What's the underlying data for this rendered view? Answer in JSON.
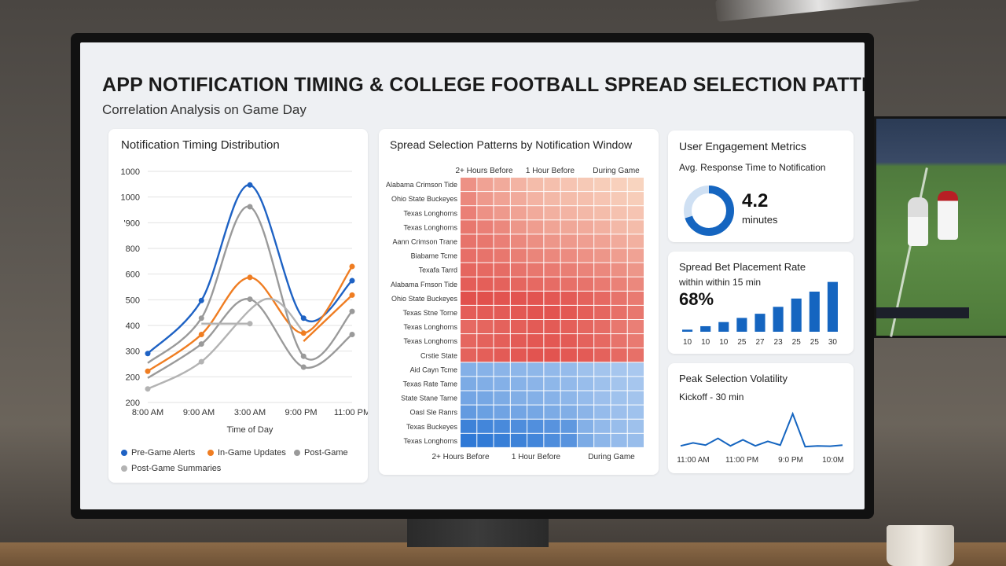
{
  "header": {
    "title": "APP NOTIFICATION TIMING & COLLEGE FOOTBALL SPREAD SELECTION PATTERNS",
    "subtitle": "Correlation Analysis on Game Day"
  },
  "cards": {
    "line": {
      "title": "Notification Timing Distribution",
      "x_label": "Time of Day"
    },
    "heatmap": {
      "title": "Spread Selection Patterns by Notification Window"
    },
    "engagement": {
      "title": "User Engagement Metrics",
      "subtitle": "Avg. Response Time to Notification",
      "value": "4.2",
      "unit": "minutes",
      "donut_fraction": 0.7,
      "accent": "#1565c0"
    },
    "placement": {
      "title": "Spread Bet Placement Rate",
      "subtitle": "within within 15 min",
      "value": "68%"
    },
    "volatility": {
      "title": "Peak Selection Volatility",
      "subtitle": "Kickoff - 30 min"
    }
  },
  "colors": {
    "blue": "#1e62c4",
    "orange": "#ef7d22",
    "gray": "#9a9a9a",
    "gray2": "#b3b3b3",
    "bar": "#1565c0"
  },
  "chart_data": [
    {
      "type": "line",
      "title": "Notification Timing Distribution",
      "xlabel": "Time of Day",
      "x": [
        "8:00 AM",
        "9:00 AM",
        "3:00 AM",
        "9:00 PM",
        "11:00 PM"
      ],
      "y_ticks": [
        "1000",
        "1000",
        "'900",
        "800",
        "600",
        "500",
        "400",
        "300",
        "200",
        "200"
      ],
      "ylim": [
        150,
        1000
      ],
      "series": [
        {
          "name": "Pre-Game Alerts",
          "color": "#1e62c4",
          "points": [
            [
              0,
              330
            ],
            [
              1.05,
              525
            ],
            [
              2,
              950
            ],
            [
              3.05,
              460
            ],
            [
              4,
              598
            ]
          ]
        },
        {
          "name": "In-Game Updates",
          "color": "#ef7d22",
          "points": [
            [
              0,
              265
            ],
            [
              1.05,
              400
            ],
            [
              2,
              610
            ],
            [
              3.05,
              405
            ],
            [
              4,
              650
            ]
          ]
        },
        {
          "name": "In-Game Updates",
          "color": "#ef7d22",
          "points": [
            [
              3.05,
              375
            ],
            [
              4,
              545
            ]
          ]
        },
        {
          "name": "Post-Game",
          "color": "#9a9a9a",
          "points": [
            [
              0,
              295
            ],
            [
              1.05,
              460
            ],
            [
              2,
              870
            ],
            [
              3.05,
              320
            ],
            [
              4,
              485
            ]
          ]
        },
        {
          "name": "Post-Game",
          "color": "#9a9a9a",
          "points": [
            [
              0,
              240
            ],
            [
              1.05,
              365
            ],
            [
              2,
              530
            ],
            [
              3.05,
              280
            ],
            [
              4,
              400
            ]
          ]
        },
        {
          "name": "Post-Game Summaries",
          "color": "#b3b3b3",
          "points": [
            [
              0,
              200
            ],
            [
              1.05,
              300
            ],
            [
              2.3,
              530
            ],
            [
              3.05,
              410
            ]
          ]
        },
        {
          "name": "Post-Game Summaries",
          "color": "#b3b3b3",
          "points": [
            [
              1.05,
              440
            ],
            [
              2,
              440
            ]
          ]
        }
      ],
      "markers": [
        {
          "x": 0,
          "y": 330,
          "color": "#1e62c4"
        },
        {
          "x": 1.05,
          "y": 525,
          "color": "#1e62c4"
        },
        {
          "x": 2,
          "y": 950,
          "color": "#1e62c4"
        },
        {
          "x": 3.05,
          "y": 460,
          "color": "#1e62c4"
        },
        {
          "x": 4,
          "y": 598,
          "color": "#1e62c4"
        },
        {
          "x": 0,
          "y": 265,
          "color": "#ef7d22"
        },
        {
          "x": 1.05,
          "y": 400,
          "color": "#ef7d22"
        },
        {
          "x": 2,
          "y": 610,
          "color": "#ef7d22"
        },
        {
          "x": 3.05,
          "y": 405,
          "color": "#ef7d22"
        },
        {
          "x": 4,
          "y": 650,
          "color": "#ef7d22"
        },
        {
          "x": 4,
          "y": 545,
          "color": "#ef7d22"
        },
        {
          "x": 1.05,
          "y": 460,
          "color": "#9a9a9a"
        },
        {
          "x": 2,
          "y": 870,
          "color": "#9a9a9a"
        },
        {
          "x": 3.05,
          "y": 320,
          "color": "#9a9a9a"
        },
        {
          "x": 4,
          "y": 485,
          "color": "#9a9a9a"
        },
        {
          "x": 1.05,
          "y": 365,
          "color": "#9a9a9a"
        },
        {
          "x": 2,
          "y": 530,
          "color": "#9a9a9a"
        },
        {
          "x": 3.05,
          "y": 280,
          "color": "#9a9a9a"
        },
        {
          "x": 4,
          "y": 400,
          "color": "#9a9a9a"
        },
        {
          "x": 0,
          "y": 200,
          "color": "#b3b3b3"
        },
        {
          "x": 1.05,
          "y": 300,
          "color": "#b3b3b3"
        },
        {
          "x": 2,
          "y": 440,
          "color": "#b3b3b3"
        }
      ],
      "legend": [
        {
          "label": "Pre-Game Alerts",
          "color": "#1e62c4"
        },
        {
          "label": "In-Game Updates",
          "color": "#ef7d22"
        },
        {
          "label": "Post-Game",
          "color": "#9a9a9a"
        },
        {
          "label": "Post-Game Summaries",
          "color": "#b3b3b3"
        }
      ]
    },
    {
      "type": "heatmap",
      "title": "Spread Selection Patterns by Notification Window",
      "top_labels": [
        "2+ Hours Before",
        "1 Hour Before",
        "During Game"
      ],
      "bottom_labels": [
        "2+ Hours Before",
        "1 Hour Before",
        "During Game"
      ],
      "rows": [
        "Alabama Crimson Tide",
        "Ohio State Buckeyes",
        "Texas Longhorns",
        "Texas Longhorns",
        "Aann Crimson Trane",
        "Biabame Tcme",
        "Texafa Tarrd",
        "Alabama Fmson Tide",
        "Ohio State Buckeyes",
        "Texas Stne Torne",
        "Texas Longhorns",
        "Texas Longhorns",
        "Crstie State",
        "Aid Cayn Tcme",
        "Texas Rate Tame",
        "State Stane Tarne",
        "Oasl Sle Ranrs",
        "Texas Buckeyes",
        "Texas Longhorns"
      ],
      "columns": 11,
      "values": [
        [
          0.45,
          0.35,
          0.3,
          0.25,
          0.2,
          0.18,
          0.15,
          0.12,
          0.1,
          0.08,
          0.06
        ],
        [
          0.5,
          0.4,
          0.35,
          0.3,
          0.25,
          0.22,
          0.2,
          0.18,
          0.15,
          0.12,
          0.1
        ],
        [
          0.55,
          0.45,
          0.4,
          0.35,
          0.3,
          0.27,
          0.25,
          0.22,
          0.2,
          0.17,
          0.15
        ],
        [
          0.6,
          0.55,
          0.5,
          0.42,
          0.38,
          0.34,
          0.32,
          0.3,
          0.27,
          0.22,
          0.2
        ],
        [
          0.62,
          0.6,
          0.55,
          0.5,
          0.46,
          0.42,
          0.4,
          0.37,
          0.35,
          0.3,
          0.27
        ],
        [
          0.65,
          0.62,
          0.6,
          0.56,
          0.52,
          0.5,
          0.48,
          0.45,
          0.42,
          0.38,
          0.35
        ],
        [
          0.7,
          0.68,
          0.66,
          0.62,
          0.6,
          0.58,
          0.56,
          0.53,
          0.5,
          0.46,
          0.42
        ],
        [
          0.75,
          0.74,
          0.72,
          0.7,
          0.68,
          0.66,
          0.64,
          0.62,
          0.58,
          0.54,
          0.5
        ],
        [
          0.82,
          0.82,
          0.8,
          0.8,
          0.8,
          0.78,
          0.76,
          0.72,
          0.68,
          0.62,
          0.58
        ],
        [
          0.75,
          0.76,
          0.76,
          0.78,
          0.8,
          0.8,
          0.78,
          0.74,
          0.7,
          0.64,
          0.6
        ],
        [
          0.68,
          0.7,
          0.72,
          0.74,
          0.76,
          0.76,
          0.74,
          0.7,
          0.66,
          0.6,
          0.55
        ],
        [
          0.7,
          0.72,
          0.74,
          0.76,
          0.78,
          0.78,
          0.76,
          0.72,
          0.68,
          0.62,
          0.58
        ],
        [
          0.72,
          0.74,
          0.76,
          0.78,
          0.8,
          0.8,
          0.78,
          0.76,
          0.72,
          0.68,
          0.64
        ],
        [
          -0.4,
          -0.38,
          -0.36,
          -0.35,
          -0.34,
          -0.32,
          -0.3,
          -0.25,
          -0.22,
          -0.2,
          -0.18
        ],
        [
          -0.45,
          -0.42,
          -0.4,
          -0.38,
          -0.36,
          -0.34,
          -0.32,
          -0.28,
          -0.25,
          -0.22,
          -0.2
        ],
        [
          -0.5,
          -0.48,
          -0.45,
          -0.42,
          -0.4,
          -0.38,
          -0.35,
          -0.3,
          -0.26,
          -0.24,
          -0.22
        ],
        [
          -0.6,
          -0.55,
          -0.52,
          -0.5,
          -0.48,
          -0.45,
          -0.42,
          -0.36,
          -0.3,
          -0.26,
          -0.24
        ],
        [
          -0.82,
          -0.78,
          -0.75,
          -0.72,
          -0.7,
          -0.66,
          -0.62,
          -0.4,
          -0.32,
          -0.28,
          -0.25
        ],
        [
          -0.9,
          -0.88,
          -0.85,
          -0.82,
          -0.78,
          -0.72,
          -0.66,
          -0.45,
          -0.35,
          -0.3,
          -0.28
        ]
      ]
    },
    {
      "type": "bar",
      "title": "Spread Bet Placement Rate",
      "categories": [
        "10",
        "10",
        "10",
        "25",
        "27",
        "23",
        "25",
        "25",
        "30"
      ],
      "values": [
        3,
        8,
        14,
        20,
        26,
        36,
        48,
        58,
        72
      ],
      "ylim": [
        0,
        75
      ]
    },
    {
      "type": "line",
      "title": "Peak Selection Volatility",
      "x_ticks": [
        "11:00 AM",
        "11:00 PM",
        "9:0 PM",
        "10:0M"
      ],
      "values": [
        10,
        18,
        12,
        30,
        10,
        26,
        10,
        22,
        12,
        95,
        8,
        10,
        9,
        12
      ],
      "ylim": [
        0,
        100
      ]
    }
  ]
}
